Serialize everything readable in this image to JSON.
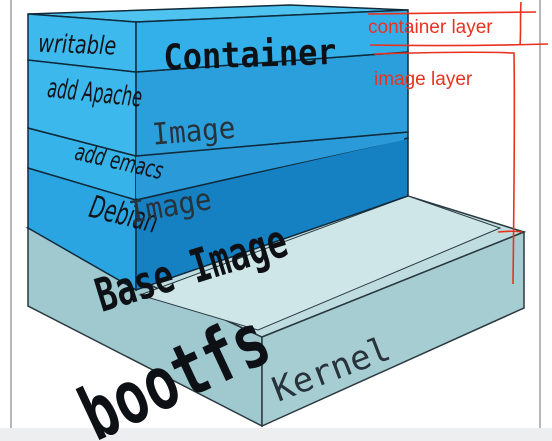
{
  "layers": {
    "container": {
      "side_label": "writable",
      "main_label": "Container"
    },
    "image_apache": {
      "side_label": "add Apache",
      "main_label": "Image"
    },
    "image_emacs": {
      "side_label": "add emacs",
      "main_label": "Image"
    },
    "base": {
      "side_label": "Debian",
      "main_label": "Base Image"
    },
    "bootfs": {
      "main_label": "bootfs"
    },
    "kernel": {
      "main_label": "Kernel"
    }
  },
  "annotations": {
    "container_layer": "container layer",
    "image_layer": "image layer"
  },
  "colors": {
    "blue_light": "#2fb0e8",
    "blue_mid": "#1d95d6",
    "blue_dark": "#1580c2",
    "kernel_top": "#bfdde0",
    "kernel_side": "#a6cdd2",
    "annotation_red": "#e8321e"
  }
}
